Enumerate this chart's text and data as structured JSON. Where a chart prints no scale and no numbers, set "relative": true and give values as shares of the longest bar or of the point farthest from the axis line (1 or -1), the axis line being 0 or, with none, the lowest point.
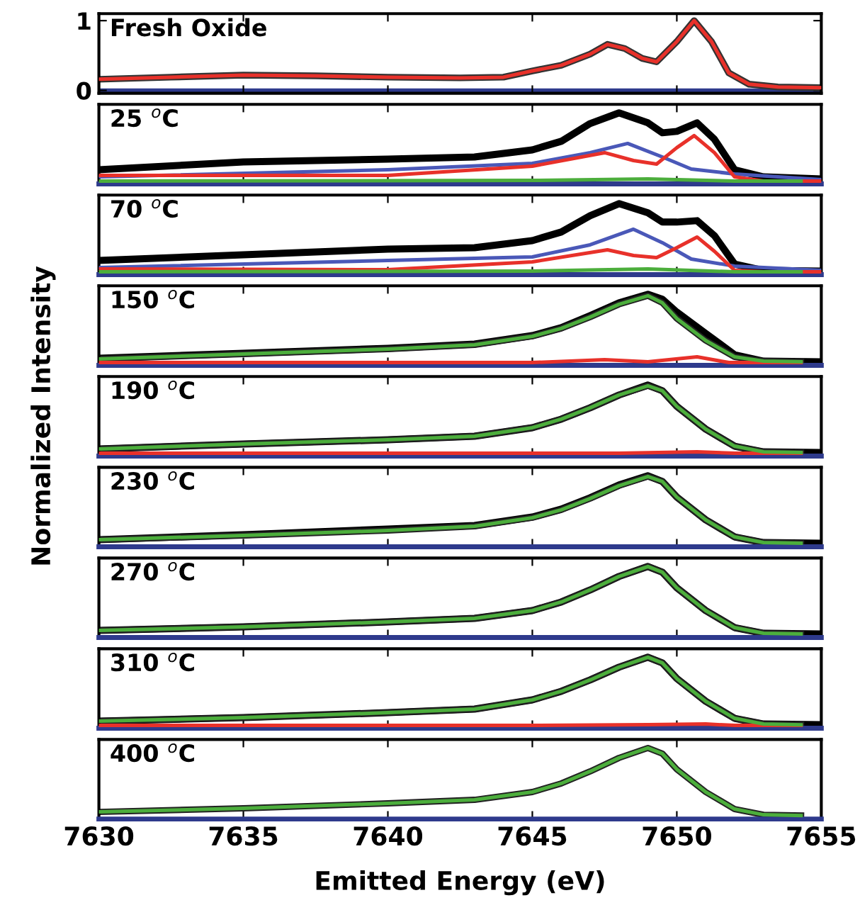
{
  "chart_data": [
    {
      "type": "line",
      "title": "Fresh Oxide",
      "xlim": [
        7630,
        7655
      ],
      "ylim": [
        -0.04,
        1.1
      ],
      "yticks": [
        0,
        1
      ],
      "tick_labels": "y",
      "ref_lines": [
        {
          "axis": "y",
          "value": 0,
          "color": "#2e3a8c"
        }
      ],
      "series": [
        {
          "color": "#e8312a",
          "x": [
            7630,
            7632.5,
            7635,
            7637.5,
            7640,
            7642.5,
            7644,
            7645,
            7646,
            7647,
            7647.6,
            7648.2,
            7648.8,
            7649.3,
            7650,
            7650.6,
            7651.2,
            7651.8,
            7652.5,
            7653.5,
            7655
          ],
          "values": [
            0.16,
            0.19,
            0.22,
            0.21,
            0.19,
            0.18,
            0.19,
            0.28,
            0.36,
            0.52,
            0.66,
            0.6,
            0.46,
            0.41,
            0.7,
            1.0,
            0.7,
            0.25,
            0.09,
            0.05,
            0.04
          ]
        }
      ]
    },
    {
      "type": "line",
      "title": "25 $^{o}$C",
      "xlim": [
        7630,
        7655
      ],
      "relative": true,
      "tick_labels": false,
      "series": [
        {
          "color": "#000000",
          "x": [
            7630,
            7635,
            7640,
            7643,
            7645,
            7646,
            7647,
            7648,
            7649,
            7649.5,
            7650,
            7650.7,
            7651.3,
            7652,
            7653,
            7655
          ],
          "values": [
            0.2,
            0.31,
            0.35,
            0.38,
            0.48,
            0.6,
            0.85,
            1.0,
            0.86,
            0.72,
            0.74,
            0.86,
            0.63,
            0.2,
            0.1,
            0.07
          ]
        },
        {
          "color": "#4a58b8",
          "x": [
            7630,
            7640,
            7645,
            7647,
            7648.3,
            7649.5,
            7650.5,
            7652,
            7655
          ],
          "values": [
            0.1,
            0.2,
            0.29,
            0.44,
            0.57,
            0.38,
            0.21,
            0.14,
            0.06
          ]
        },
        {
          "color": "#e8312a",
          "x": [
            7630,
            7640,
            7645,
            7647.5,
            7648.5,
            7649.3,
            7650,
            7650.6,
            7651.3,
            7652,
            7653,
            7655
          ],
          "values": [
            0.12,
            0.12,
            0.25,
            0.44,
            0.33,
            0.28,
            0.51,
            0.68,
            0.44,
            0.1,
            0.04,
            0.04
          ]
        },
        {
          "color": "#4cae3c",
          "x": [
            7630,
            7645,
            7649,
            7652,
            7654.3
          ],
          "values": [
            0.04,
            0.05,
            0.07,
            0.04,
            0.04
          ]
        }
      ]
    },
    {
      "type": "line",
      "title": "70 $^{o}$C",
      "xlim": [
        7630,
        7655
      ],
      "relative": true,
      "tick_labels": false,
      "series": [
        {
          "color": "#000000",
          "x": [
            7630,
            7635,
            7640,
            7643,
            7645,
            7646,
            7647,
            7648,
            7649,
            7649.5,
            7650,
            7650.7,
            7651.3,
            7652,
            7653,
            7655
          ],
          "values": [
            0.2,
            0.28,
            0.36,
            0.38,
            0.48,
            0.6,
            0.83,
            1.0,
            0.87,
            0.74,
            0.74,
            0.76,
            0.55,
            0.15,
            0.06,
            0.05
          ]
        },
        {
          "color": "#4a58b8",
          "x": [
            7630,
            7640,
            7645,
            7647,
            7648.5,
            7649.5,
            7650.5,
            7652,
            7655
          ],
          "values": [
            0.1,
            0.2,
            0.25,
            0.42,
            0.64,
            0.45,
            0.22,
            0.12,
            0.06
          ]
        },
        {
          "color": "#e8312a",
          "x": [
            7630,
            7640,
            7645,
            7647.6,
            7648.5,
            7649.3,
            7650,
            7650.7,
            7651.3,
            7652,
            7653,
            7655
          ],
          "values": [
            0.08,
            0.07,
            0.18,
            0.35,
            0.27,
            0.24,
            0.38,
            0.53,
            0.33,
            0.06,
            0.04,
            0.04
          ]
        },
        {
          "color": "#4cae3c",
          "x": [
            7630,
            7645,
            7649,
            7652,
            7654.3
          ],
          "values": [
            0.04,
            0.05,
            0.08,
            0.04,
            0.04
          ]
        }
      ]
    },
    {
      "type": "line",
      "title": "150 $^{o}$C",
      "xlim": [
        7630,
        7655
      ],
      "relative": true,
      "tick_labels": false,
      "series": [
        {
          "color": "#000000",
          "x": [
            7630,
            7635,
            7640,
            7643,
            7645,
            7646,
            7647,
            7648,
            7649,
            7649.5,
            7650,
            7651,
            7652,
            7653,
            7655
          ],
          "values": [
            0.1,
            0.17,
            0.24,
            0.3,
            0.42,
            0.53,
            0.7,
            0.88,
            1.0,
            0.93,
            0.75,
            0.45,
            0.15,
            0.06,
            0.05
          ]
        },
        {
          "color": "#e8312a",
          "x": [
            7630,
            7645,
            7647.5,
            7649,
            7650.7,
            7651.8,
            7654.3
          ],
          "values": [
            0.04,
            0.04,
            0.08,
            0.05,
            0.12,
            0.04,
            0.04
          ]
        },
        {
          "color": "#4cae3c",
          "x": [
            7630,
            7635,
            7640,
            7643,
            7645,
            7646,
            7647,
            7648,
            7649,
            7649.5,
            7650,
            7651,
            7652,
            7653,
            7654.3
          ],
          "values": [
            0.09,
            0.16,
            0.23,
            0.29,
            0.41,
            0.52,
            0.68,
            0.86,
            0.98,
            0.88,
            0.66,
            0.35,
            0.12,
            0.06,
            0.05
          ]
        }
      ]
    },
    {
      "type": "line",
      "title": "190 $^{o}$C",
      "ylabel": "Normalized Intensity",
      "xlim": [
        7630,
        7655
      ],
      "relative": true,
      "tick_labels": false,
      "series": [
        {
          "color": "#000000",
          "x": [
            7630,
            7635,
            7640,
            7643,
            7645,
            7646,
            7647,
            7648,
            7649,
            7649.5,
            7650,
            7651,
            7652,
            7653,
            7655
          ],
          "values": [
            0.1,
            0.17,
            0.23,
            0.28,
            0.4,
            0.52,
            0.68,
            0.86,
            1.0,
            0.92,
            0.7,
            0.38,
            0.14,
            0.06,
            0.05
          ]
        },
        {
          "color": "#e8312a",
          "x": [
            7630,
            7645,
            7648,
            7650.7,
            7652,
            7654.3
          ],
          "values": [
            0.04,
            0.04,
            0.04,
            0.06,
            0.04,
            0.04
          ]
        },
        {
          "color": "#4cae3c",
          "x": [
            7630,
            7635,
            7640,
            7643,
            7645,
            7646,
            7647,
            7648,
            7649,
            7649.5,
            7650,
            7651,
            7652,
            7653,
            7654.3
          ],
          "values": [
            0.1,
            0.17,
            0.23,
            0.28,
            0.4,
            0.52,
            0.68,
            0.86,
            0.99,
            0.92,
            0.7,
            0.38,
            0.14,
            0.06,
            0.05
          ]
        }
      ]
    },
    {
      "type": "line",
      "title": "230 $^{o}$C",
      "xlim": [
        7630,
        7655
      ],
      "relative": true,
      "tick_labels": false,
      "series": [
        {
          "color": "#000000",
          "x": [
            7630,
            7635,
            7640,
            7643,
            7645,
            7646,
            7647,
            7648,
            7649,
            7649.5,
            7650,
            7651,
            7652,
            7653,
            7655
          ],
          "values": [
            0.1,
            0.17,
            0.25,
            0.3,
            0.42,
            0.53,
            0.69,
            0.87,
            1.0,
            0.92,
            0.7,
            0.38,
            0.14,
            0.06,
            0.05
          ]
        },
        {
          "color": "#4cae3c",
          "x": [
            7630,
            7635,
            7640,
            7643,
            7645,
            7646,
            7647,
            7648,
            7649,
            7649.5,
            7650,
            7651,
            7652,
            7653,
            7654.3
          ],
          "values": [
            0.1,
            0.16,
            0.23,
            0.29,
            0.41,
            0.52,
            0.68,
            0.86,
            0.99,
            0.92,
            0.7,
            0.38,
            0.14,
            0.06,
            0.05
          ]
        }
      ]
    },
    {
      "type": "line",
      "title": "270 $^{o}$C",
      "xlim": [
        7630,
        7655
      ],
      "relative": true,
      "tick_labels": false,
      "series": [
        {
          "color": "#000000",
          "x": [
            7630,
            7635,
            7640,
            7643,
            7645,
            7646,
            7647,
            7648,
            7649,
            7649.5,
            7650,
            7651,
            7652,
            7653,
            7655
          ],
          "values": [
            0.1,
            0.15,
            0.22,
            0.27,
            0.38,
            0.5,
            0.67,
            0.86,
            1.0,
            0.92,
            0.7,
            0.38,
            0.14,
            0.06,
            0.05
          ]
        },
        {
          "color": "#4cae3c",
          "x": [
            7630,
            7635,
            7640,
            7643,
            7645,
            7646,
            7647,
            7648,
            7649,
            7649.5,
            7650,
            7651,
            7652,
            7653,
            7654.3
          ],
          "values": [
            0.1,
            0.15,
            0.22,
            0.27,
            0.38,
            0.5,
            0.67,
            0.86,
            1.0,
            0.92,
            0.7,
            0.38,
            0.14,
            0.06,
            0.05
          ]
        }
      ]
    },
    {
      "type": "line",
      "title": "310 $^{o}$C",
      "xlim": [
        7630,
        7655
      ],
      "relative": true,
      "tick_labels": false,
      "series": [
        {
          "color": "#000000",
          "x": [
            7630,
            7635,
            7640,
            7643,
            7645,
            7646,
            7647,
            7648,
            7649,
            7649.5,
            7650,
            7651,
            7652,
            7653,
            7655
          ],
          "values": [
            0.1,
            0.15,
            0.22,
            0.27,
            0.4,
            0.52,
            0.68,
            0.86,
            1.0,
            0.92,
            0.7,
            0.38,
            0.14,
            0.06,
            0.05
          ]
        },
        {
          "color": "#e8312a",
          "x": [
            7630,
            7645,
            7649,
            7651,
            7652,
            7654.3
          ],
          "values": [
            0.04,
            0.04,
            0.05,
            0.06,
            0.04,
            0.04
          ]
        },
        {
          "color": "#4cae3c",
          "x": [
            7630,
            7635,
            7640,
            7643,
            7645,
            7646,
            7647,
            7648,
            7649,
            7649.5,
            7650,
            7651,
            7652,
            7653,
            7654.3
          ],
          "values": [
            0.1,
            0.15,
            0.22,
            0.27,
            0.4,
            0.52,
            0.68,
            0.86,
            1.0,
            0.92,
            0.7,
            0.38,
            0.14,
            0.06,
            0.05
          ]
        }
      ]
    },
    {
      "type": "line",
      "title": "400 $^{o}$C",
      "xlabel": "Emitted Energy (eV)",
      "xlim": [
        7630,
        7655
      ],
      "xticks": [
        7630,
        7635,
        7640,
        7645,
        7650,
        7655
      ],
      "relative": true,
      "tick_labels": "x",
      "series": [
        {
          "color": "#4cae3c",
          "x": [
            7630,
            7635,
            7640,
            7643,
            7645,
            7646,
            7647,
            7648,
            7649,
            7649.5,
            7650,
            7651,
            7652,
            7653,
            7654.3
          ],
          "values": [
            0.1,
            0.15,
            0.22,
            0.27,
            0.38,
            0.5,
            0.67,
            0.86,
            1.0,
            0.92,
            0.7,
            0.38,
            0.14,
            0.06,
            0.05
          ]
        }
      ]
    }
  ]
}
